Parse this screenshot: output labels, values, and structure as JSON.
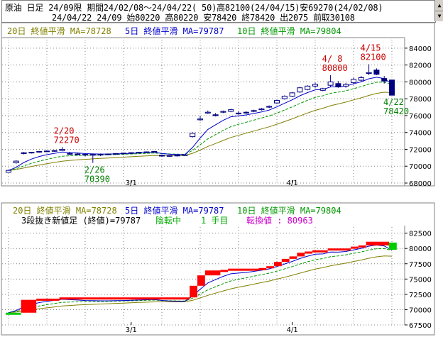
{
  "header": {
    "line1": "原油 日足 24/09限 期間24/02/08～24/04/22( 50)高82100(24/04/15)安69270(24/02/08)",
    "line2": "24/04/22 24/09 始80220 高80220 安78420 終78420 出2075 前取30108"
  },
  "colors": {
    "ma20": "#808000",
    "ma5": "#0000cc",
    "ma10": "#009900",
    "candle": "#000080",
    "annot": "#cc0000",
    "annot_low": "#008000",
    "brick_up": "#ff0000",
    "brick_last": "#00cc00",
    "grid": "#808080"
  },
  "chart_data": [
    {
      "type": "candlestick",
      "legend": {
        "ma20": "20日 終値平滑 MA=78728",
        "ma5": "5日 終値平滑 MA=79787",
        "ma10": "10日 終値平滑 MA=79804"
      },
      "x_tick_labels": [
        {
          "label": "3/1",
          "index": 16
        },
        {
          "label": "4/1",
          "index": 37
        }
      ],
      "ylim": [
        68000,
        85000
      ],
      "y_ticks": [
        68000,
        70000,
        72000,
        74000,
        76000,
        78000,
        80000,
        82000,
        84000
      ],
      "annotations": [
        {
          "text": "2/20",
          "value": "72270",
          "index": 7,
          "side": "high"
        },
        {
          "text": "2/26",
          "value": "70390",
          "index": 11,
          "side": "low"
        },
        {
          "text": "4/ 8",
          "value": "80800",
          "index": 42,
          "side": "high"
        },
        {
          "text": "4/15",
          "value": "82100",
          "index": 47,
          "side": "high"
        },
        {
          "text": "4/22",
          "value": "78420",
          "index": 50,
          "side": "low"
        }
      ],
      "ohlc": [
        [
          69270,
          69600,
          69270,
          69500
        ],
        [
          70400,
          70700,
          70300,
          70600
        ],
        [
          71500,
          71700,
          71400,
          71600
        ],
        [
          71600,
          71700,
          71500,
          71650
        ],
        [
          71700,
          71800,
          71600,
          71750
        ],
        [
          71750,
          71850,
          71700,
          71800
        ],
        [
          71800,
          71900,
          71700,
          71850
        ],
        [
          71850,
          72270,
          71800,
          72000
        ],
        [
          71500,
          71700,
          71300,
          71500
        ],
        [
          71400,
          71600,
          71300,
          71450
        ],
        [
          71400,
          71500,
          71200,
          71350
        ],
        [
          71300,
          71500,
          70390,
          71400
        ],
        [
          71350,
          71500,
          71200,
          71400
        ],
        [
          71400,
          71500,
          71300,
          71450
        ],
        [
          71450,
          71550,
          71350,
          71500
        ],
        [
          71500,
          71600,
          71400,
          71550
        ],
        [
          71550,
          71650,
          71450,
          71600
        ],
        [
          71600,
          71700,
          71500,
          71650
        ],
        [
          71650,
          71750,
          71550,
          71700
        ],
        [
          71700,
          71800,
          71600,
          71750
        ],
        [
          71300,
          71400,
          71100,
          71200
        ],
        [
          71200,
          71300,
          71100,
          71250
        ],
        [
          71250,
          71350,
          71150,
          71300
        ],
        [
          71300,
          71400,
          71200,
          71350
        ],
        [
          73500,
          74000,
          73400,
          73900
        ],
        [
          75500,
          76000,
          75400,
          75600
        ],
        [
          76300,
          76600,
          76200,
          76400
        ],
        [
          76100,
          76300,
          75900,
          76000
        ],
        [
          76400,
          76600,
          76300,
          76500
        ],
        [
          76500,
          76800,
          76400,
          76700
        ],
        [
          76300,
          76500,
          76100,
          76200
        ],
        [
          76400,
          76500,
          76200,
          76300
        ],
        [
          76500,
          76700,
          76400,
          76600
        ],
        [
          76700,
          76900,
          76600,
          76800
        ],
        [
          77000,
          77200,
          76900,
          77100
        ],
        [
          77500,
          77900,
          77400,
          77800
        ],
        [
          78000,
          78400,
          77900,
          78300
        ],
        [
          78300,
          78800,
          78200,
          78700
        ],
        [
          78800,
          79400,
          78700,
          79300
        ],
        [
          79100,
          79600,
          79000,
          79500
        ],
        [
          79500,
          79900,
          79300,
          79700
        ],
        [
          79000,
          79300,
          78900,
          79200
        ],
        [
          79600,
          80800,
          79400,
          80000
        ],
        [
          79800,
          80100,
          79300,
          79400
        ],
        [
          79500,
          79900,
          79300,
          79700
        ],
        [
          79900,
          80500,
          79700,
          80300
        ],
        [
          80200,
          80700,
          80000,
          80500
        ],
        [
          81000,
          82100,
          80800,
          81100
        ],
        [
          81400,
          81600,
          80800,
          80900
        ],
        [
          80400,
          80700,
          79800,
          80100
        ],
        [
          80220,
          80220,
          78420,
          78420
        ]
      ]
    },
    {
      "type": "three-line-break",
      "legend": {
        "ma20": "20日 終値平滑 MA=78728",
        "ma5": "5日 終値平滑 MA=79787",
        "ma10": "10日 終値平滑 MA=79804"
      },
      "subtitle": {
        "main": "3段抜き新値足 (終値)=79787",
        "status": "陰転中",
        "count": "1 手目",
        "reversal": "転換値 : 80963"
      },
      "x_tick_labels": [
        {
          "label": "3/1",
          "index": 16
        },
        {
          "label": "4/1",
          "index": 37
        }
      ],
      "ylim": [
        67500,
        83500
      ],
      "y_ticks": [
        67500,
        70000,
        72500,
        75000,
        77500,
        80000,
        82500
      ],
      "bricks": [
        {
          "start": 0,
          "end": 2,
          "from": 69270,
          "to": 69500,
          "color": "last"
        },
        {
          "start": 2,
          "end": 4,
          "from": 69500,
          "to": 71600,
          "color": "up"
        },
        {
          "start": 4,
          "end": 7,
          "from": 71600,
          "to": 71800,
          "color": "up"
        },
        {
          "start": 7,
          "end": 24,
          "from": 71800,
          "to": 72000,
          "color": "up"
        },
        {
          "start": 24,
          "end": 25,
          "from": 72000,
          "to": 73900,
          "color": "up"
        },
        {
          "start": 25,
          "end": 26,
          "from": 73900,
          "to": 75600,
          "color": "up"
        },
        {
          "start": 26,
          "end": 28,
          "from": 75600,
          "to": 76400,
          "color": "up"
        },
        {
          "start": 28,
          "end": 29,
          "from": 76400,
          "to": 76500,
          "color": "up"
        },
        {
          "start": 29,
          "end": 33,
          "from": 76500,
          "to": 76700,
          "color": "up"
        },
        {
          "start": 33,
          "end": 34,
          "from": 76700,
          "to": 76800,
          "color": "up"
        },
        {
          "start": 34,
          "end": 35,
          "from": 76800,
          "to": 77100,
          "color": "up"
        },
        {
          "start": 35,
          "end": 36,
          "from": 77100,
          "to": 77800,
          "color": "up"
        },
        {
          "start": 36,
          "end": 37,
          "from": 77800,
          "to": 78300,
          "color": "up"
        },
        {
          "start": 37,
          "end": 38,
          "from": 78300,
          "to": 78700,
          "color": "up"
        },
        {
          "start": 38,
          "end": 39,
          "from": 78700,
          "to": 79300,
          "color": "up"
        },
        {
          "start": 39,
          "end": 40,
          "from": 79300,
          "to": 79500,
          "color": "up"
        },
        {
          "start": 40,
          "end": 42,
          "from": 79500,
          "to": 79700,
          "color": "up"
        },
        {
          "start": 42,
          "end": 45,
          "from": 79700,
          "to": 80000,
          "color": "up"
        },
        {
          "start": 45,
          "end": 46,
          "from": 80000,
          "to": 80300,
          "color": "up"
        },
        {
          "start": 46,
          "end": 47,
          "from": 80300,
          "to": 80500,
          "color": "up"
        },
        {
          "start": 47,
          "end": 50,
          "from": 80500,
          "to": 81100,
          "color": "up"
        },
        {
          "start": 50,
          "end": 51,
          "from": 80963,
          "to": 79787,
          "color": "last"
        }
      ]
    }
  ]
}
